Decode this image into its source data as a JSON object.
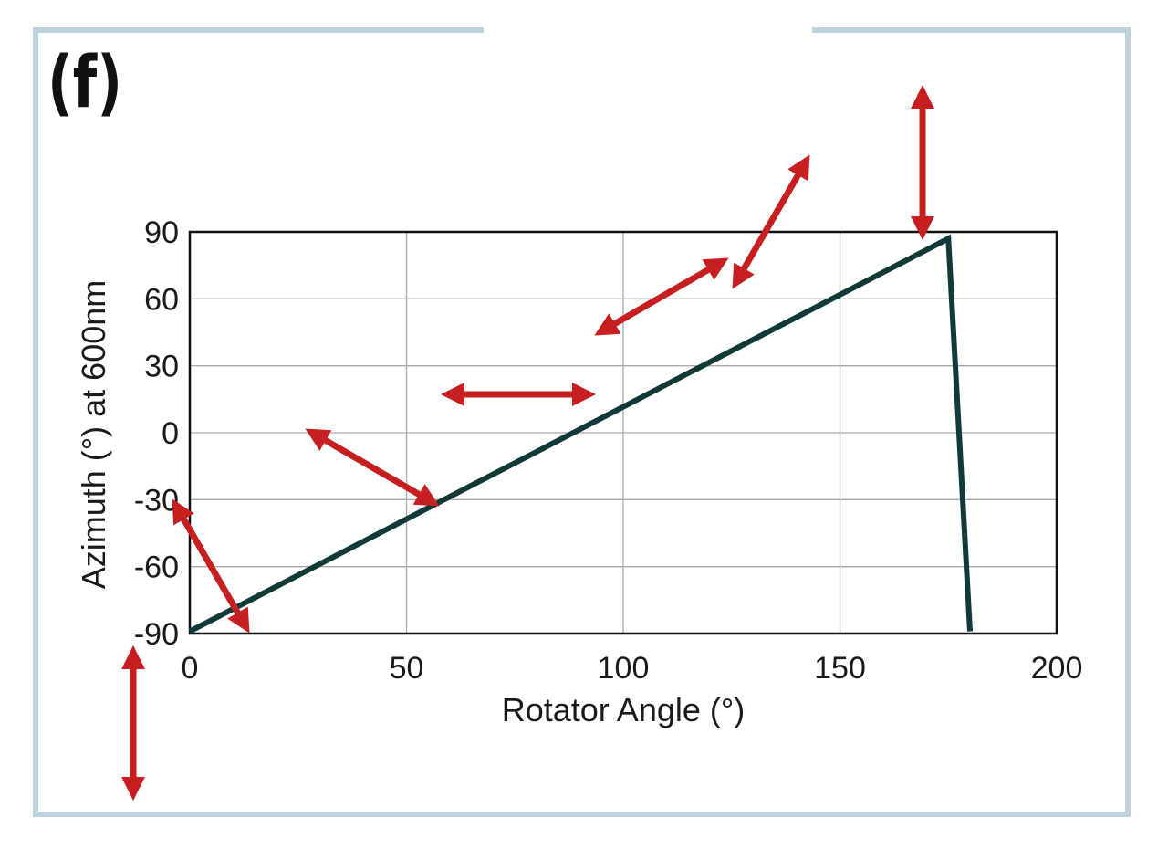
{
  "panel_label": "(f)",
  "colors": {
    "line": "#12393a",
    "arrow": "#c71f1f",
    "grid": "#a9a9a9",
    "frame": "#bcd3de"
  },
  "chart_data": {
    "type": "line",
    "title": "",
    "xlabel": "Rotator Angle (°)",
    "ylabel": "Azimuth (°) at 600nm",
    "xlim": [
      0,
      200
    ],
    "ylim": [
      -90,
      90
    ],
    "x_ticks": [
      0,
      50,
      100,
      150,
      200
    ],
    "y_ticks": [
      90,
      60,
      30,
      0,
      -30,
      -60,
      -90
    ],
    "grid": true,
    "series": [
      {
        "x": [
          0,
          175,
          180
        ],
        "y": [
          -89,
          87,
          -89
        ]
      }
    ],
    "annotations": [
      {
        "type": "double-arrow",
        "angle_deg": -90
      },
      {
        "type": "double-arrow",
        "angle_deg": -60
      },
      {
        "type": "double-arrow",
        "angle_deg": -30
      },
      {
        "type": "double-arrow",
        "angle_deg": 0
      },
      {
        "type": "double-arrow",
        "angle_deg": 30
      },
      {
        "type": "double-arrow",
        "angle_deg": 60
      },
      {
        "type": "double-arrow",
        "angle_deg": 90
      }
    ]
  }
}
